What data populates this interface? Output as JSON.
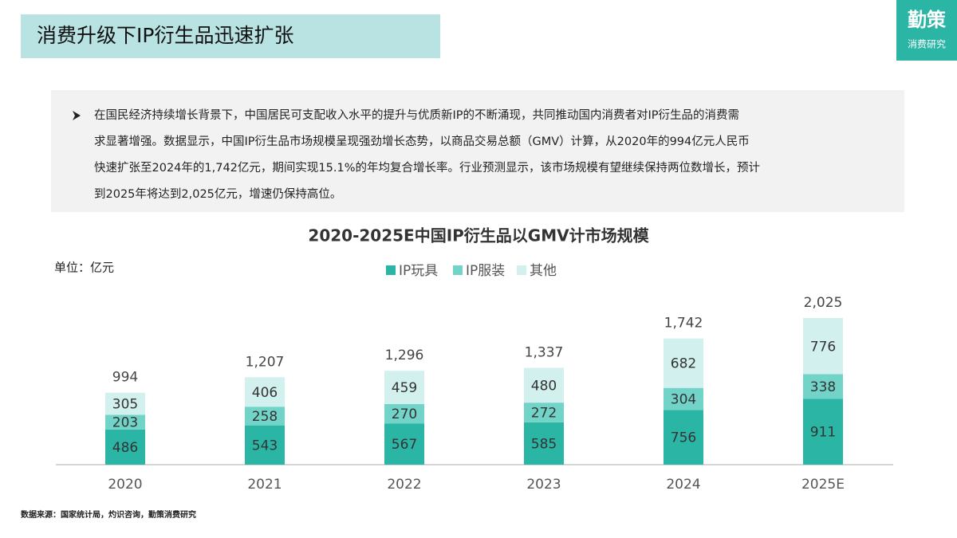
{
  "header": {
    "title": "消费升级下IP衍生品迅速扩张"
  },
  "logo": {
    "name": "勤策",
    "subtitle": "消费研究"
  },
  "bullet": {
    "lines": [
      "在国民经济持续增长背景下，中国居民可支配收入水平的提升与优质新IP的不断涌现，共同推动国内消费者对IP衍生品的消费需",
      "求显著增强。数据显示，中国IP衍生品市场规模呈现强劲增长态势，以商品交易总额（GMV）计算，从2020年的994亿元人民币",
      "快速扩张至2024年的1,742亿元，期间实现15.1%的年均复合增长率。行业预测显示，该市场规模有望继续保持两位数增长，预计",
      "到2025年将达到2,025亿元，增速仍保持高位。"
    ]
  },
  "chart_data": {
    "type": "stacked_bar",
    "title": "2020-2025E中国IP衍生品以GMV计市场规模",
    "unit_label": "单位：亿元",
    "categories": [
      "2020",
      "2021",
      "2022",
      "2023",
      "2024",
      "2025E"
    ],
    "series": [
      {
        "name": "IP玩具",
        "color": "#2bb5a5",
        "values": [
          486,
          543,
          567,
          585,
          756,
          911
        ]
      },
      {
        "name": "IP服装",
        "color": "#72d4c8",
        "values": [
          203,
          258,
          270,
          272,
          304,
          338
        ]
      },
      {
        "name": "其他",
        "color": "#d2f0ed",
        "values": [
          305,
          406,
          459,
          480,
          682,
          776
        ]
      }
    ],
    "totals": [
      994,
      1207,
      1296,
      1337,
      1742,
      2025
    ],
    "totals_labels": [
      "994",
      "1,207",
      "1,296",
      "1,337",
      "1,742",
      "2,025"
    ]
  },
  "source": "数据来源：国家统计局，灼识咨询，勤策消费研究"
}
